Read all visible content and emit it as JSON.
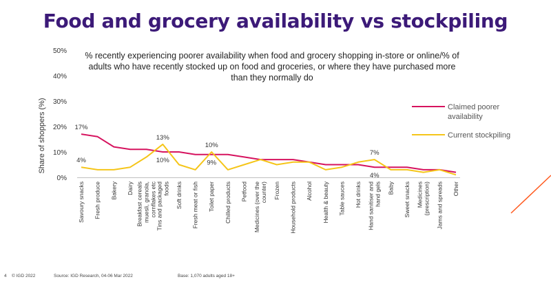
{
  "page": {
    "title": "Food and grocery availability vs stockpiling",
    "subtitle": "% recently experiencing poorer availability when food and grocery shopping in-store or online/% of adults who have recently stocked up on food and groceries, or where they have purchased more than they normally do",
    "footer": {
      "page_number": "4",
      "copyright": "© IGD 2022",
      "source": "Source: IGD Research, 04-06 Mar 2022",
      "base": "Base: 1,070 adults aged 18+"
    }
  },
  "colors": {
    "title": "#3c1a78",
    "claimed": "#d6125e",
    "stockpiling": "#f5c518",
    "accent": "#ff5a1f"
  },
  "chart_data": {
    "type": "line",
    "ylabel": "Share of shoppers (%)",
    "ylim": [
      0,
      50
    ],
    "yticks": [
      "0%",
      "10%",
      "20%",
      "30%",
      "40%",
      "50%"
    ],
    "yticks_values": [
      0,
      10,
      20,
      30,
      40,
      50
    ],
    "categories": [
      "Savoury snacks",
      "Fresh produce",
      "Bakery",
      "Dairy",
      "Breakfast cereals muesli, granola, cornflakes etc",
      "Tins and packaged foods",
      "Soft drinks",
      "Fresh meat or fish",
      "Toilet paper",
      "Chilled products",
      "Petfood",
      "Medicines (over the counter)",
      "Frozen",
      "Household products",
      "Alcohol",
      "Health & beauty",
      "Table sauces",
      "Hot drinks",
      "Hand sanitiser and hand gels",
      "Baby",
      "Sweet snacks",
      "Medicines (prescription)",
      "Jams and spreads",
      "Other"
    ],
    "series": [
      {
        "name": "Claimed poorer availability",
        "values": [
          17,
          16,
          12,
          11,
          11,
          10,
          10,
          9,
          9,
          9,
          8,
          7,
          7,
          7,
          6,
          5,
          5,
          5,
          4,
          4,
          4,
          3,
          3,
          2
        ]
      },
      {
        "name": "Current stockpiling",
        "values": [
          4,
          3,
          3,
          4,
          8,
          13,
          5,
          3,
          10,
          3,
          5,
          7,
          5,
          6,
          6,
          3,
          4,
          6,
          7,
          3,
          3,
          2,
          3,
          1
        ]
      }
    ],
    "annotations": [
      {
        "text": "17%",
        "category_index": 0,
        "series_index": 0,
        "pos": "above"
      },
      {
        "text": "4%",
        "category_index": 0,
        "series_index": 1,
        "pos": "above"
      },
      {
        "text": "13%",
        "category_index": 5,
        "series_index": 1,
        "pos": "above"
      },
      {
        "text": "10%",
        "category_index": 5,
        "series_index": 0,
        "pos": "below"
      },
      {
        "text": "10%",
        "category_index": 8,
        "series_index": 1,
        "pos": "above"
      },
      {
        "text": "9%",
        "category_index": 8,
        "series_index": 0,
        "pos": "below"
      },
      {
        "text": "7%",
        "category_index": 18,
        "series_index": 1,
        "pos": "above"
      },
      {
        "text": "4%",
        "category_index": 18,
        "series_index": 0,
        "pos": "below"
      }
    ],
    "legend_position": "right",
    "legend": [
      {
        "label": "Claimed poorer availability",
        "series_index": 0
      },
      {
        "label": "Current stockpiling",
        "series_index": 1
      }
    ],
    "grid": false
  }
}
